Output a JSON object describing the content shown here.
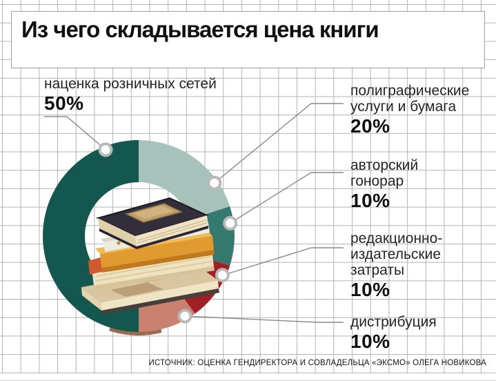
{
  "title": "Из чего складывается цена книги",
  "source": "ИСТОЧНИК: ОЦЕНКА ГЕНДИРЕКТОРА И СОВЛАДЕЛЬЦА «ЭКСМО» ОЛЕГА НОВИКОВА",
  "chart_data": {
    "type": "pie",
    "subtype": "donut",
    "title": "Из чего складывается цена книги",
    "center_image": "stack-of-books",
    "start_angle_deg": 180,
    "line_color": "#8a8a8a",
    "marker": {
      "fill": "#ffffff",
      "ring": "#b9b9b9"
    },
    "rim_shadow_color": "#9c6a51",
    "segments": [
      {
        "label": "наценка розничных сетей",
        "value": 50,
        "value_label": "50%",
        "color": "#14574f",
        "marker_angle": 339
      },
      {
        "label": "полиграфические услуги и бумага",
        "value": 20,
        "value_label": "20%",
        "color": "#a7c2ba",
        "marker_angle": 55
      },
      {
        "label": "авторский гонорар",
        "value": 10,
        "value_label": "10%",
        "color": "#35796f",
        "marker_angle": 82
      },
      {
        "label": "редакционно-издательские затраты",
        "value": 10,
        "value_label": "10%",
        "color": "#a02025",
        "marker_angle": 115
      },
      {
        "label": "дистрибуция",
        "value": 10,
        "value_label": "10%",
        "color": "#c98270",
        "marker_angle": 150
      }
    ]
  },
  "callouts": {
    "left": {
      "lines": [
        "наценка розничных сетей"
      ],
      "pct": "50%"
    },
    "right": [
      {
        "lines": [
          "полиграфические",
          "услуги и бумага"
        ],
        "pct": "20%"
      },
      {
        "lines": [
          "авторский",
          "гонорар"
        ],
        "pct": "10%"
      },
      {
        "lines": [
          "редакционно-",
          "издательские",
          "затраты"
        ],
        "pct": "10%"
      },
      {
        "lines": [
          "дистрибуция"
        ],
        "pct": "10%"
      }
    ]
  }
}
